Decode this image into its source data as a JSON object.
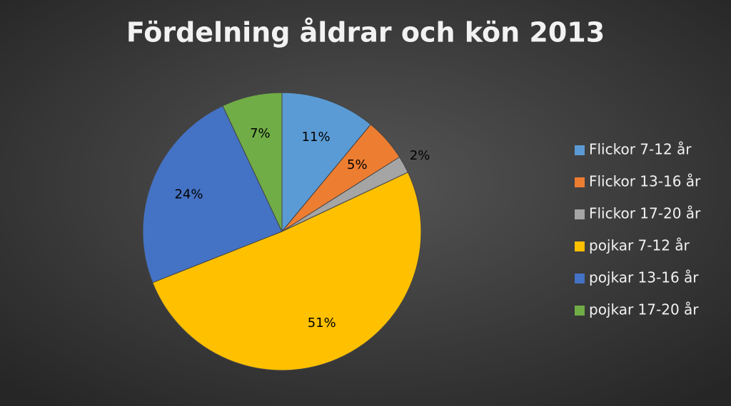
{
  "chart_data": {
    "type": "pie",
    "title": "Fördelning åldrar och kön 2013",
    "categories": [
      "Flickor 7-12 år",
      "Flickor 13-16 år",
      "Flickor 17-20 år",
      "pojkar 7-12 år",
      "pojkar 13-16 år",
      "pojkar 17-20 år"
    ],
    "values": [
      11,
      5,
      2,
      51,
      24,
      7
    ],
    "value_labels": [
      "11%",
      "5%",
      "2%",
      "51%",
      "24%",
      "7%"
    ],
    "colors": [
      "#5b9bd5",
      "#ed7d31",
      "#a5a5a5",
      "#ffc000",
      "#4472c4",
      "#70ad47"
    ],
    "legend": "right"
  }
}
